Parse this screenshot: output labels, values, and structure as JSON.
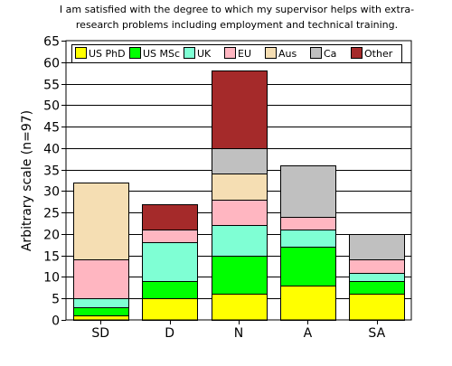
{
  "chart_data": {
    "type": "bar",
    "stacked": true,
    "title_lines": [
      "I am satisfied with the degree to which my supervisor helps with extra-",
      "research problems including employment and technical training."
    ],
    "xlabel": "",
    "ylabel": "Arbitrary scale (n=97)",
    "ylim": [
      0,
      65
    ],
    "yticks": [
      0,
      5,
      10,
      15,
      20,
      25,
      30,
      35,
      40,
      45,
      50,
      55,
      60,
      65
    ],
    "grid": "horizontal",
    "legend_placement": "top-left",
    "categories": [
      "SD",
      "D",
      "N",
      "A",
      "SA"
    ],
    "series": [
      {
        "name": "US PhD",
        "color": "#ffff00",
        "values": [
          1,
          5,
          6,
          8,
          6
        ]
      },
      {
        "name": "US MSc",
        "color": "#00ff00",
        "values": [
          2,
          4,
          9,
          9,
          3
        ]
      },
      {
        "name": "UK",
        "color": "#7fffd4",
        "values": [
          2,
          9,
          7,
          4,
          2
        ]
      },
      {
        "name": "EU",
        "color": "#ffb6c1",
        "values": [
          9,
          3,
          6,
          3,
          3
        ]
      },
      {
        "name": "Aus",
        "color": "#f5deb3",
        "values": [
          18,
          0,
          6,
          0,
          0
        ]
      },
      {
        "name": "Ca",
        "color": "#c0c0c0",
        "values": [
          0,
          0,
          6,
          12,
          6
        ]
      },
      {
        "name": "Other",
        "color": "#a52a2a",
        "values": [
          0,
          6,
          18,
          0,
          0
        ]
      }
    ]
  }
}
